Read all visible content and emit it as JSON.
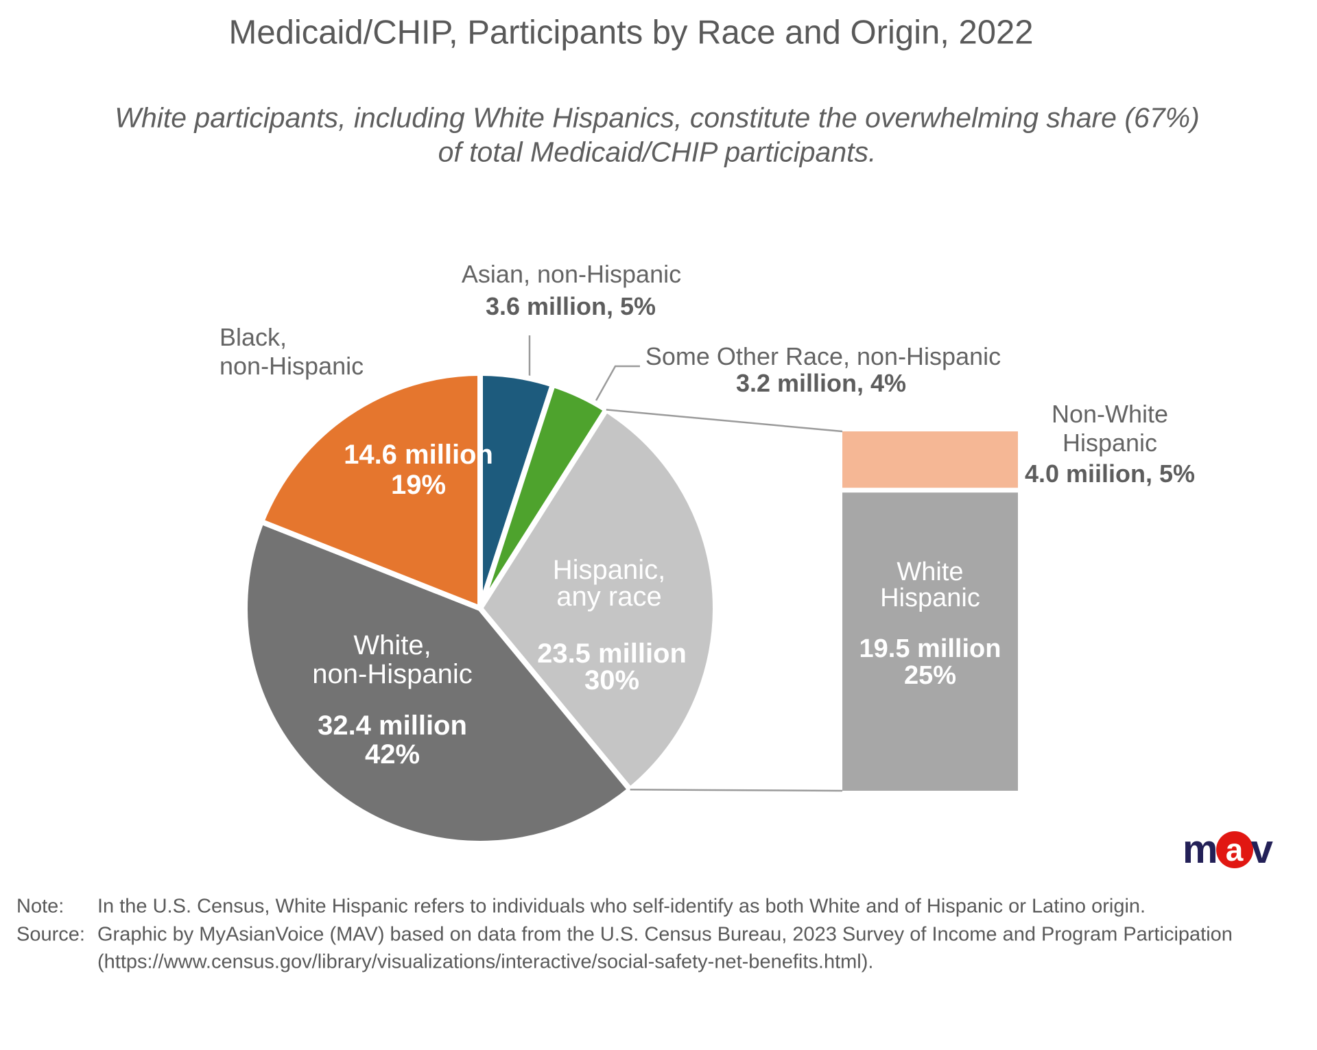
{
  "header": {
    "title": "Medicaid/CHIP, Participants by Race and Origin, 2022",
    "subtitle_line1": "White participants, including White Hispanics, constitute the overwhelming share (67%)",
    "subtitle_line2": "of total Medicaid/CHIP participants."
  },
  "chart_data": {
    "type": "pie",
    "title": "Medicaid/CHIP, Participants by Race and Origin, 2022",
    "units": "millions of participants",
    "start_angle": "12 o'clock, clockwise",
    "slices": [
      {
        "name": "asian-non-hispanic",
        "label": "Asian, non-Hispanic",
        "millions": 3.6,
        "percent": 5,
        "color": "#1D5B7D"
      },
      {
        "name": "some-other-race-non-hispanic",
        "label": "Some Other Race, non-Hispanic",
        "millions": 3.2,
        "percent": 4,
        "color": "#4EA32D"
      },
      {
        "name": "hispanic-any-race",
        "label": "Hispanic, any race",
        "millions": 23.5,
        "percent": 30,
        "color": "#C5C5C5"
      },
      {
        "name": "white-non-hispanic",
        "label": "White, non-Hispanic",
        "millions": 32.4,
        "percent": 42,
        "color": "#737373"
      },
      {
        "name": "black-non-hispanic",
        "label": "Black, non-Hispanic",
        "millions": 14.6,
        "percent": 19,
        "color": "#E5762E"
      }
    ],
    "bar_breakdown": {
      "of_slice": "Hispanic, any race",
      "segments": [
        {
          "name": "non-white-hispanic",
          "label": "Non-White Hispanic",
          "millions": 4.0,
          "percent": 5,
          "color": "#F5B795"
        },
        {
          "name": "white-hispanic",
          "label": "White Hispanic",
          "millions": 19.5,
          "percent": 25,
          "color": "#A7A7A7"
        }
      ]
    }
  },
  "callouts": {
    "black_line1": "Black,",
    "black_line2": "non-Hispanic",
    "asian_line1": "Asian, non-Hispanic",
    "asian_line2": "3.6 million, 5%",
    "someother_line1": "Some Other Race, non-Hispanic",
    "someother_line2": "3.2 million, 4%",
    "nonwhite_line1": "Non-White",
    "nonwhite_line2": "Hispanic",
    "nonwhite_line3": "4.0 miilion, 5%"
  },
  "pie_labels": {
    "black_value": "14.6 million",
    "black_pct": "19%",
    "white_name1": "White,",
    "white_name2": "non-Hispanic",
    "white_value": "32.4 million",
    "white_pct": "42%",
    "hispanic_name1": "Hispanic,",
    "hispanic_name2": "any race",
    "hispanic_value": "23.5 million",
    "hispanic_pct": "30%"
  },
  "bar_labels": {
    "white_hispanic_name1": "White",
    "white_hispanic_name2": "Hispanic",
    "white_hispanic_value": "19.5 million",
    "white_hispanic_pct": "25%"
  },
  "footer": {
    "note_label": "Note:",
    "note_text": "In the U.S. Census, White Hispanic refers to individuals who self-identify as both White and of Hispanic or Latino origin.",
    "source_label": "Source:",
    "source_text": "Graphic by MyAsianVoice (MAV) based on data from the U.S. Census Bureau, 2023 Survey of Income and Program Participation",
    "source_url_line": "(https://www.census.gov/library/visualizations/interactive/social-safety-net-benefits.html)."
  },
  "logo": {
    "m": "m",
    "a": "a",
    "v": "v",
    "navy": "#232057",
    "red": "#E11712"
  },
  "colors": {
    "leader_line": "#9A9A9A"
  }
}
